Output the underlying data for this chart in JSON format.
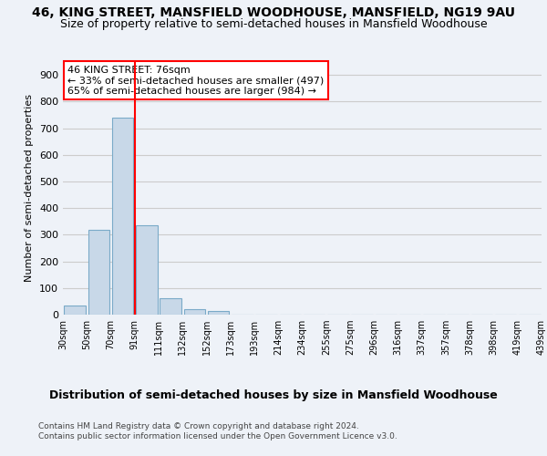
{
  "title1": "46, KING STREET, MANSFIELD WOODHOUSE, MANSFIELD, NG19 9AU",
  "title2": "Size of property relative to semi-detached houses in Mansfield Woodhouse",
  "xlabel": "Distribution of semi-detached houses by size in Mansfield Woodhouse",
  "ylabel": "Number of semi-detached properties",
  "footer1": "Contains HM Land Registry data © Crown copyright and database right 2024.",
  "footer2": "Contains public sector information licensed under the Open Government Licence v3.0.",
  "annotation_title": "46 KING STREET: 76sqm",
  "annotation_line1": "← 33% of semi-detached houses are smaller (497)",
  "annotation_line2": "65% of semi-detached houses are larger (984) →",
  "bar_values": [
    35,
    320,
    740,
    335,
    60,
    22,
    13,
    0,
    0,
    0,
    0,
    0,
    0,
    0,
    0,
    0,
    0,
    0,
    0,
    0
  ],
  "bin_labels": [
    "30sqm",
    "50sqm",
    "70sqm",
    "91sqm",
    "111sqm",
    "132sqm",
    "152sqm",
    "173sqm",
    "193sqm",
    "214sqm",
    "234sqm",
    "255sqm",
    "275sqm",
    "296sqm",
    "316sqm",
    "337sqm",
    "357sqm",
    "378sqm",
    "398sqm",
    "419sqm",
    "439sqm"
  ],
  "bar_color": "#c8d8e8",
  "bar_edgecolor": "#7aaac8",
  "grid_color": "#cccccc",
  "bg_color": "#eef2f8",
  "axes_bg_color": "#eef2f8",
  "red_line_x": 2.5,
  "ylim": [
    0,
    950
  ],
  "yticks": [
    0,
    100,
    200,
    300,
    400,
    500,
    600,
    700,
    800,
    900
  ],
  "title1_fontsize": 10,
  "title2_fontsize": 9,
  "ylabel_fontsize": 8,
  "annotation_fontsize": 8,
  "xtick_fontsize": 7,
  "ytick_fontsize": 8,
  "xlabel_fontsize": 9,
  "footer_fontsize": 6.5,
  "annotation_box_color": "white",
  "annotation_border_color": "red"
}
